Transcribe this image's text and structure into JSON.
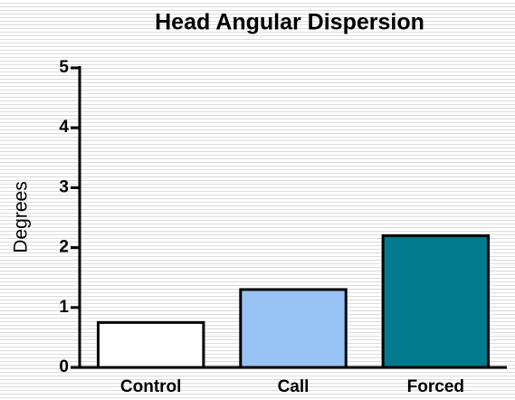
{
  "chart_data": {
    "type": "bar",
    "title": "Head Angular Dispersion",
    "y_label": "Degrees",
    "categories": [
      "Control",
      "Call",
      "Forced"
    ],
    "values": [
      0.75,
      1.3,
      2.2
    ],
    "colors": [
      "#ffffff",
      "#99c2f5",
      "#007a8c"
    ],
    "ylim": [
      0,
      5
    ],
    "yticks": [
      0,
      1,
      2,
      3,
      4,
      5
    ],
    "grid": false
  }
}
